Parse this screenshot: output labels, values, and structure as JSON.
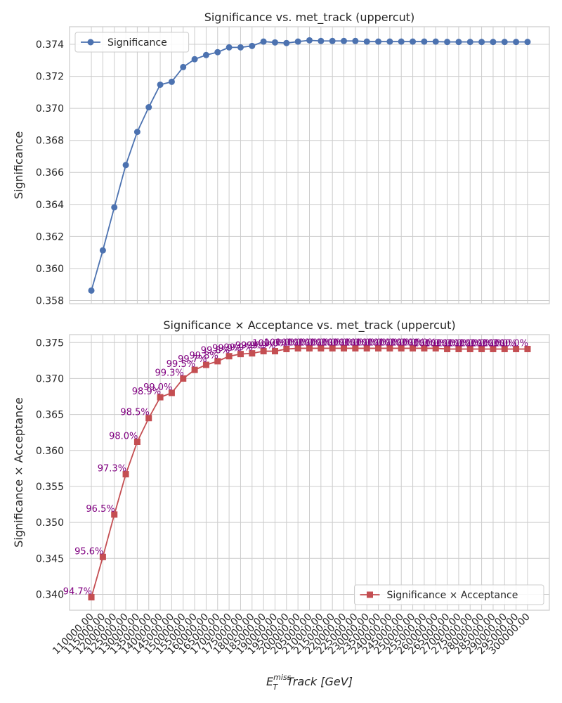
{
  "chart_data": [
    {
      "type": "line",
      "title": "Significance vs. met_track (uppercut)",
      "ylabel": "Significance",
      "series": [
        {
          "name": "Significance",
          "color": "#4c72b0",
          "marker": "circle",
          "values": [
            0.35862,
            0.36113,
            0.36382,
            0.36646,
            0.36853,
            0.37007,
            0.37148,
            0.37166,
            0.37258,
            0.37307,
            0.37333,
            0.37351,
            0.37381,
            0.37381,
            0.3739,
            0.37417,
            0.37412,
            0.37408,
            0.37417,
            0.37425,
            0.37421,
            0.37421,
            0.37421,
            0.37421,
            0.37417,
            0.37417,
            0.37417,
            0.37417,
            0.37417,
            0.37417,
            0.37417,
            0.37415,
            0.37415,
            0.37415,
            0.37415,
            0.37415,
            0.37415,
            0.37415,
            0.37415
          ]
        }
      ],
      "ylim": [
        0.3578,
        0.3751
      ],
      "yticks": [
        0.358,
        {
          "value": 0.36,
          "label": "0.360"
        },
        0.362,
        0.364,
        0.366,
        0.368,
        {
          "value": 0.37,
          "label": "0.370"
        },
        0.372,
        0.374
      ],
      "grid": true,
      "legend": "upper left"
    },
    {
      "type": "line",
      "title": "Significance × Acceptance vs. met_track (uppercut)",
      "ylabel": "Significance × Acceptance",
      "xlabel": {
        "base": "E",
        "sub": "T",
        "sup": "miss",
        "rest": " Track [GeV]"
      },
      "categories": [
        "110000.00",
        "115000.00",
        "120000.00",
        "125000.00",
        "130000.00",
        "135000.00",
        "140000.00",
        "145000.00",
        "150000.00",
        "155000.00",
        "160000.00",
        "165000.00",
        "170000.00",
        "175000.00",
        "180000.00",
        "185000.00",
        "190000.00",
        "195000.00",
        "200000.00",
        "205000.00",
        "210000.00",
        "215000.00",
        "220000.00",
        "225000.00",
        "230000.00",
        "235000.00",
        "240000.00",
        "245000.00",
        "250000.00",
        "255000.00",
        "260000.00",
        "265000.00",
        "270000.00",
        "275000.00",
        "280000.00",
        "285000.00",
        "290000.00",
        "295000.00",
        "300000.00"
      ],
      "series": [
        {
          "name": "Significance × Acceptance",
          "color": "#c44e52",
          "marker": "square",
          "values": [
            0.3396,
            0.3452,
            0.3511,
            0.3567,
            0.3612,
            0.3645,
            0.3674,
            0.368,
            0.37,
            0.3712,
            0.3719,
            0.3724,
            0.3731,
            0.3734,
            0.3735,
            0.3738,
            0.3738,
            0.3741,
            0.3742,
            0.3742,
            0.3742,
            0.3742,
            0.3742,
            0.3742,
            0.3742,
            0.3742,
            0.3742,
            0.3742,
            0.3742,
            0.3742,
            0.3742,
            0.3741,
            0.3741,
            0.3741,
            0.3741,
            0.3741,
            0.3741,
            0.3741,
            0.3741
          ],
          "annotations": [
            "94.7%",
            "95.6%",
            "96.5%",
            "97.3%",
            "98.0%",
            "98.5%",
            "98.9%",
            "99.0%",
            "99.3%",
            "99.5%",
            "99.7%",
            "99.8%",
            "99.8%",
            "99.9%",
            "99.9%",
            "99.9%",
            "99.9%",
            "100.0%",
            "100.0%",
            "100.0%",
            "100.0%",
            "100.0%",
            "100.0%",
            "100.0%",
            "100.0%",
            "100.0%",
            "100.0%",
            "100.0%",
            "100.0%",
            "100.0%",
            "100.0%",
            "100.0%",
            "100.0%",
            "100.0%",
            "100.0%",
            "100.0%",
            "100.0%",
            "100.0%",
            "100.0%"
          ],
          "annotation_color": "#800080"
        }
      ],
      "ylim": [
        0.3378,
        0.3761
      ],
      "yticks": [
        {
          "value": 0.34,
          "label": "0.340"
        },
        0.345,
        {
          "value": 0.35,
          "label": "0.350"
        },
        0.355,
        {
          "value": 0.36,
          "label": "0.360"
        },
        0.365,
        {
          "value": 0.37,
          "label": "0.370"
        },
        0.375
      ],
      "grid": true,
      "legend": "lower right"
    }
  ]
}
